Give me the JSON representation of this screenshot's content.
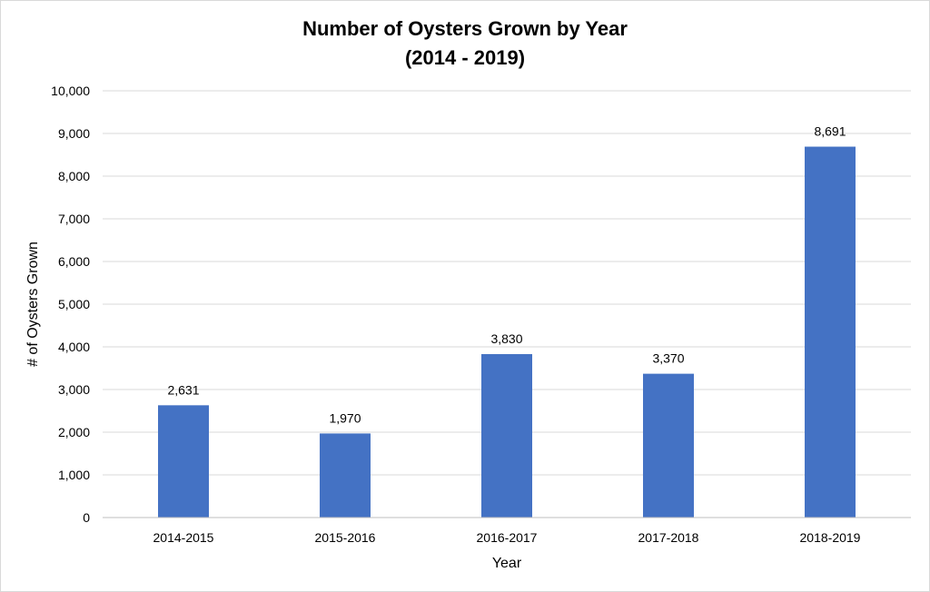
{
  "chart_data": {
    "type": "bar",
    "title": "Number of Oysters Grown by Year",
    "subtitle": "(2014 - 2019)",
    "xlabel": "Year",
    "ylabel": "# of Oysters Grown",
    "categories": [
      "2014-2015",
      "2015-2016",
      "2016-2017",
      "2017-2018",
      "2018-2019"
    ],
    "values": [
      2631,
      1970,
      3830,
      3370,
      8691
    ],
    "data_labels": [
      "2,631",
      "1,970",
      "3,830",
      "3,370",
      "8,691"
    ],
    "ylim": [
      0,
      10000
    ],
    "yticks": [
      0,
      1000,
      2000,
      3000,
      4000,
      5000,
      6000,
      7000,
      8000,
      9000,
      10000
    ],
    "ytick_labels": [
      "0",
      "1,000",
      "2,000",
      "3,000",
      "4,000",
      "5,000",
      "6,000",
      "7,000",
      "8,000",
      "9,000",
      "10,000"
    ],
    "grid": true,
    "legend": "none",
    "colors": {
      "bar": "#4472C4",
      "grid": "#d9d9d9",
      "axis": "#bfbfbf"
    }
  }
}
